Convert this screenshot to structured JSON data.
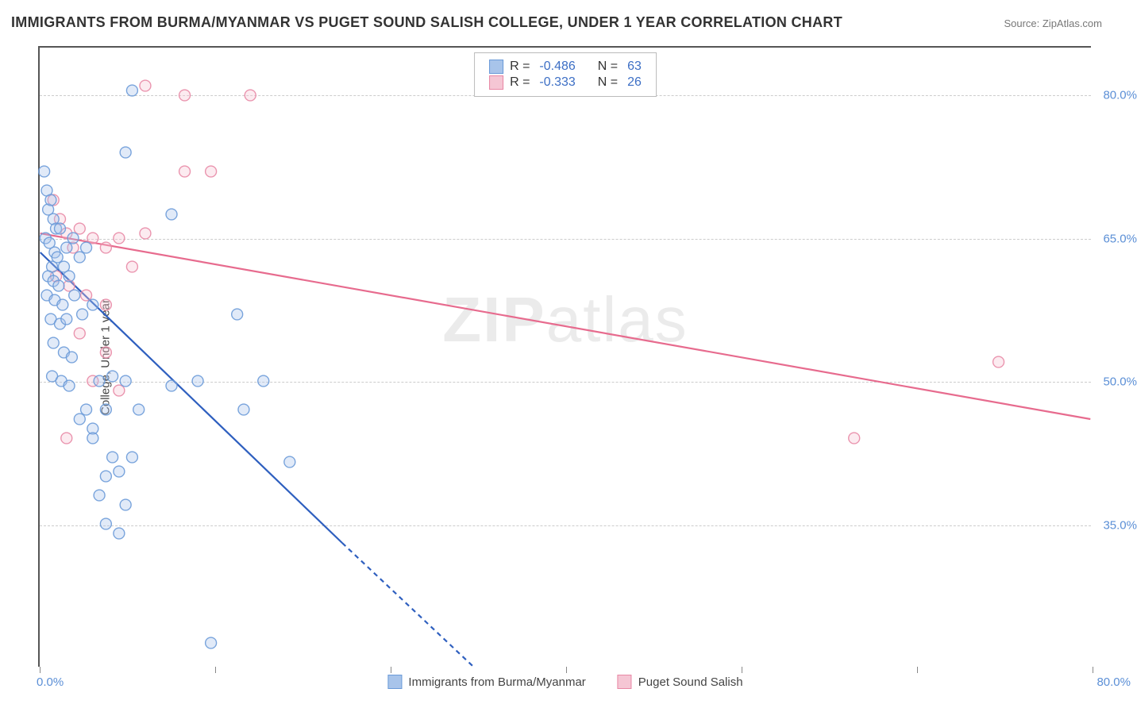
{
  "title": "IMMIGRANTS FROM BURMA/MYANMAR VS PUGET SOUND SALISH COLLEGE, UNDER 1 YEAR CORRELATION CHART",
  "source_prefix": "Source: ",
  "source_name": "ZipAtlas.com",
  "y_axis_label": "College, Under 1 year",
  "watermark_bold": "ZIP",
  "watermark_rest": "atlas",
  "chart": {
    "type": "scatter",
    "xlim": [
      0,
      80
    ],
    "ylim": [
      20,
      85
    ],
    "x_ticks": [
      0,
      13.33,
      26.67,
      40,
      53.33,
      66.67,
      80
    ],
    "x_tick_labels_shown": {
      "min": "0.0%",
      "max": "80.0%"
    },
    "y_gridlines": [
      35,
      50,
      65,
      80
    ],
    "y_tick_labels": [
      "35.0%",
      "50.0%",
      "65.0%",
      "80.0%"
    ],
    "background_color": "#ffffff",
    "grid_color": "#cccccc",
    "axis_color": "#555555",
    "tick_label_color": "#5b8fd6",
    "tick_fontsize": 15,
    "label_fontsize": 15,
    "title_fontsize": 18,
    "marker_radius": 7,
    "marker_fill_opacity": 0.35,
    "marker_stroke_opacity": 0.9,
    "line_width": 2.2
  },
  "series": {
    "blue": {
      "name": "Immigrants from Burma/Myanmar",
      "color_fill": "#a8c4ea",
      "color_stroke": "#6a9ad8",
      "line_color": "#2e5fbf",
      "r_label": "R =",
      "r_value": "-0.486",
      "n_label": "N =",
      "n_value": "63",
      "trend": {
        "x1": 0,
        "y1": 63.5,
        "x2": 23,
        "y2": 33,
        "dash_to_x": 33,
        "dash_to_y": 20
      },
      "points": [
        [
          0.5,
          70
        ],
        [
          0.6,
          68
        ],
        [
          0.8,
          69
        ],
        [
          1.0,
          67
        ],
        [
          1.2,
          66
        ],
        [
          0.4,
          65
        ],
        [
          0.7,
          64.5
        ],
        [
          1.5,
          66
        ],
        [
          1.1,
          63.5
        ],
        [
          0.9,
          62
        ],
        [
          1.3,
          63
        ],
        [
          2.0,
          64
        ],
        [
          2.5,
          65
        ],
        [
          1.8,
          62
        ],
        [
          0.6,
          61
        ],
        [
          1.0,
          60.5
        ],
        [
          1.4,
          60
        ],
        [
          2.2,
          61
        ],
        [
          3.0,
          63
        ],
        [
          3.5,
          64
        ],
        [
          0.5,
          59
        ],
        [
          1.1,
          58.5
        ],
        [
          1.7,
          58
        ],
        [
          2.6,
          59
        ],
        [
          0.8,
          56.5
        ],
        [
          1.5,
          56
        ],
        [
          2.0,
          56.5
        ],
        [
          3.2,
          57
        ],
        [
          4.0,
          58
        ],
        [
          1.0,
          54
        ],
        [
          1.8,
          53
        ],
        [
          2.4,
          52.5
        ],
        [
          0.9,
          50.5
        ],
        [
          1.6,
          50
        ],
        [
          2.2,
          49.5
        ],
        [
          4.5,
          50
        ],
        [
          5.5,
          50.5
        ],
        [
          6.5,
          50
        ],
        [
          15,
          57
        ],
        [
          10,
          67.5
        ],
        [
          7,
          80.5
        ],
        [
          6.5,
          74
        ],
        [
          3.5,
          47
        ],
        [
          5,
          47
        ],
        [
          3,
          46
        ],
        [
          4,
          45
        ],
        [
          7.5,
          47
        ],
        [
          10,
          49.5
        ],
        [
          12,
          50
        ],
        [
          17,
          50
        ],
        [
          15.5,
          47
        ],
        [
          4,
          44
        ],
        [
          5.5,
          42
        ],
        [
          7,
          42
        ],
        [
          6,
          40.5
        ],
        [
          5,
          40
        ],
        [
          4.5,
          38
        ],
        [
          6.5,
          37
        ],
        [
          19,
          41.5
        ],
        [
          5,
          35
        ],
        [
          6,
          34
        ],
        [
          13,
          22.5
        ],
        [
          0.3,
          72
        ]
      ]
    },
    "pink": {
      "name": "Puget Sound Salish",
      "color_fill": "#f5c6d4",
      "color_stroke": "#e888a5",
      "line_color": "#e76b8e",
      "r_label": "R =",
      "r_value": "-0.333",
      "n_label": "N =",
      "n_value": "26",
      "trend": {
        "x1": 0,
        "y1": 65.5,
        "x2": 80,
        "y2": 46
      },
      "points": [
        [
          1,
          69
        ],
        [
          1.5,
          67
        ],
        [
          2,
          65.5
        ],
        [
          2.5,
          64
        ],
        [
          3,
          66
        ],
        [
          4,
          65
        ],
        [
          5,
          64
        ],
        [
          6,
          65
        ],
        [
          8,
          65.5
        ],
        [
          1.2,
          61
        ],
        [
          2.2,
          60
        ],
        [
          3.5,
          59
        ],
        [
          5,
          58
        ],
        [
          7,
          62
        ],
        [
          3,
          55
        ],
        [
          5,
          53
        ],
        [
          4,
          50
        ],
        [
          6,
          49
        ],
        [
          2,
          44
        ],
        [
          8,
          81
        ],
        [
          11,
          80
        ],
        [
          16,
          80
        ],
        [
          11,
          72
        ],
        [
          13,
          72
        ],
        [
          62,
          44
        ],
        [
          73,
          52
        ]
      ]
    }
  },
  "legend_bottom": [
    {
      "key": "blue"
    },
    {
      "key": "pink"
    }
  ]
}
